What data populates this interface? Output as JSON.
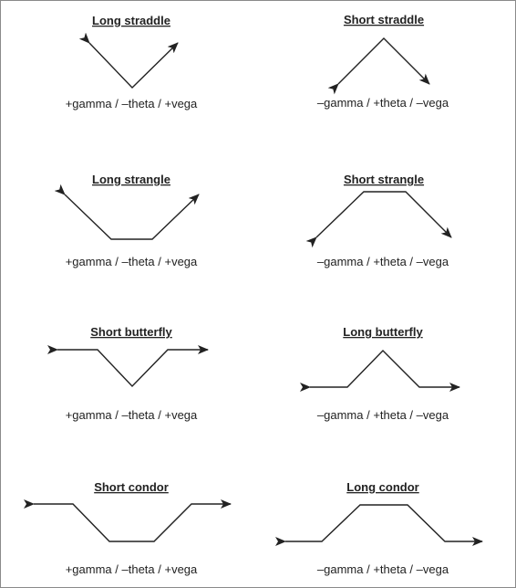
{
  "colors": {
    "ink": "#222222",
    "frame": "#8a8a8a",
    "background": "#ffffff"
  },
  "panels": [
    {
      "id": "long-straddle",
      "title": "Long straddle",
      "label": "+gamma / –theta / +vega"
    },
    {
      "id": "short-straddle",
      "title": "Short straddle",
      "label": "–gamma / +theta / –vega"
    },
    {
      "id": "long-strangle",
      "title": "Long strangle",
      "label": "+gamma / –theta / +vega"
    },
    {
      "id": "short-strangle",
      "title": "Short strangle",
      "label": "–gamma / +theta / –vega"
    },
    {
      "id": "short-butterfly",
      "title": "Short butterfly",
      "label": "+gamma / –theta / +vega"
    },
    {
      "id": "long-butterfly",
      "title": "Long butterfly",
      "label": "–gamma / +theta / –vega"
    },
    {
      "id": "short-condor",
      "title": "Short condor",
      "label": "+gamma / –theta / +vega"
    },
    {
      "id": "long-condor",
      "title": "Long condor",
      "label": "–gamma / +theta / –vega"
    }
  ]
}
